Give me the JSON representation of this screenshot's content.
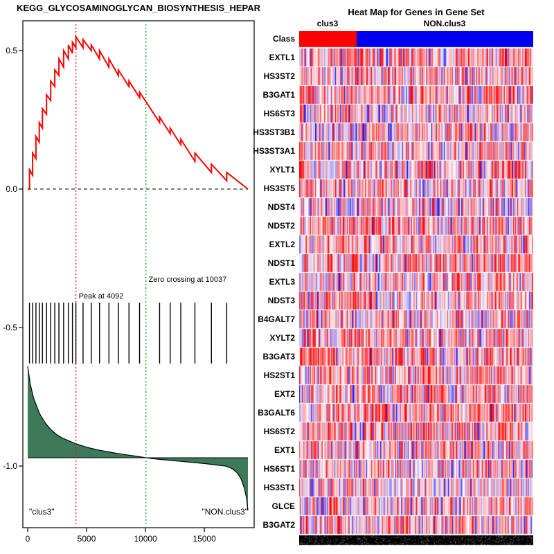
{
  "chart_data": [
    {
      "type": "line",
      "title": "KEGG_GLYCOSAMINOGLYCAN_BIOSYNTHESIS_HEPAR",
      "xlabel": "",
      "ylabel": "",
      "xlim": [
        0,
        18700
      ],
      "ylim": [
        -1.22,
        0.62
      ],
      "x_tick_values": [
        0,
        5000,
        10000,
        15000
      ],
      "x_ticks": [
        "0",
        "5000",
        "10000",
        "15000"
      ],
      "y_tick_values": [
        0.5,
        0.0,
        -0.5,
        -1.0
      ],
      "y_ticks": [
        "0.5",
        "0.0",
        "-0.5",
        "-1.0"
      ],
      "annotations": {
        "peak": {
          "label": "Peak at 4092",
          "x": 4092
        },
        "zero_crossing": {
          "label": "Zero crossing at 10037",
          "x": 10037
        },
        "left_group": "\"clus3\"",
        "right_group": "\"NON.clus3\""
      },
      "zero_es_line": {
        "y": 0.0,
        "style": "dashed",
        "color": "#333333"
      },
      "vlines": [
        {
          "x": 4092,
          "color": "#FF0000",
          "style": "dotted"
        },
        {
          "x": 10037,
          "color": "#00AA00",
          "style": "dotted"
        }
      ],
      "gene_hits": {
        "y_range": [
          -0.41,
          -0.63
        ],
        "color": "#000000",
        "x": [
          150,
          420,
          700,
          980,
          1250,
          1600,
          1950,
          2300,
          2650,
          3050,
          3450,
          3800,
          4092,
          4700,
          5400,
          6100,
          6900,
          7700,
          8600,
          9500,
          11200,
          12100,
          13000,
          14200,
          15600,
          16900
        ]
      },
      "series": [
        {
          "name": "running_enrichment_score",
          "color": "#FF0000",
          "points": [
            [
              0,
              0
            ],
            [
              150,
              0
            ],
            [
              150,
              0.07
            ],
            [
              420,
              0.05
            ],
            [
              420,
              0.13
            ],
            [
              700,
              0.11
            ],
            [
              700,
              0.19
            ],
            [
              980,
              0.17
            ],
            [
              980,
              0.24
            ],
            [
              1250,
              0.22
            ],
            [
              1250,
              0.29
            ],
            [
              1600,
              0.27
            ],
            [
              1600,
              0.34
            ],
            [
              1950,
              0.32
            ],
            [
              1950,
              0.39
            ],
            [
              2300,
              0.37
            ],
            [
              2300,
              0.43
            ],
            [
              2650,
              0.41
            ],
            [
              2650,
              0.47
            ],
            [
              3050,
              0.44
            ],
            [
              3050,
              0.5
            ],
            [
              3450,
              0.47
            ],
            [
              3450,
              0.52
            ],
            [
              3800,
              0.49
            ],
            [
              3800,
              0.53
            ],
            [
              4092,
              0.51
            ],
            [
              4092,
              0.55
            ],
            [
              4700,
              0.51
            ],
            [
              4700,
              0.54
            ],
            [
              5400,
              0.5
            ],
            [
              5400,
              0.52
            ],
            [
              6100,
              0.47
            ],
            [
              6100,
              0.5
            ],
            [
              6900,
              0.44
            ],
            [
              6900,
              0.47
            ],
            [
              7700,
              0.41
            ],
            [
              7700,
              0.43
            ],
            [
              8600,
              0.37
            ],
            [
              8600,
              0.39
            ],
            [
              9500,
              0.33
            ],
            [
              9500,
              0.35
            ],
            [
              11200,
              0.24
            ],
            [
              11200,
              0.26
            ],
            [
              12100,
              0.2
            ],
            [
              12100,
              0.22
            ],
            [
              13000,
              0.16
            ],
            [
              13000,
              0.18
            ],
            [
              14200,
              0.1
            ],
            [
              14200,
              0.13
            ],
            [
              15600,
              0.06
            ],
            [
              15600,
              0.09
            ],
            [
              16900,
              0.03
            ],
            [
              16900,
              0.06
            ],
            [
              18700,
              0
            ]
          ]
        },
        {
          "name": "ranked_list_metric",
          "color": "#000000",
          "fill": "#3C7A5A",
          "baseline": -0.97,
          "points": [
            [
              0,
              -0.64
            ],
            [
              200,
              -0.7
            ],
            [
              500,
              -0.755
            ],
            [
              1000,
              -0.81
            ],
            [
              1500,
              -0.845
            ],
            [
              2000,
              -0.87
            ],
            [
              2500,
              -0.888
            ],
            [
              3000,
              -0.9
            ],
            [
              4000,
              -0.918
            ],
            [
              5000,
              -0.932
            ],
            [
              6000,
              -0.942
            ],
            [
              7000,
              -0.95
            ],
            [
              8000,
              -0.957
            ],
            [
              9000,
              -0.963
            ],
            [
              10037,
              -0.97
            ],
            [
              11000,
              -0.975
            ],
            [
              12000,
              -0.979
            ],
            [
              13000,
              -0.983
            ],
            [
              14000,
              -0.987
            ],
            [
              15000,
              -0.991
            ],
            [
              16000,
              -0.996
            ],
            [
              16800,
              -1.0
            ],
            [
              17400,
              -1.01
            ],
            [
              17800,
              -1.025
            ],
            [
              18100,
              -1.045
            ],
            [
              18400,
              -1.08
            ],
            [
              18600,
              -1.12
            ],
            [
              18700,
              -1.16
            ]
          ]
        }
      ]
    },
    {
      "type": "heatmap",
      "title": "Heat Map for Genes in Gene Set",
      "class_row_label": "Class",
      "groups": [
        {
          "name": "clus3",
          "color": "#FF0000",
          "fraction": 0.245
        },
        {
          "name": "NON.clus3",
          "color": "#0000EE",
          "fraction": 0.755
        }
      ],
      "genes": [
        "EXTL1",
        "HS3ST2",
        "B3GAT1",
        "HS6ST3",
        "HS3ST3B1",
        "HS3ST3A1",
        "XYLT1",
        "HS3ST5",
        "NDST4",
        "NDST2",
        "EXTL2",
        "NDST1",
        "EXTL3",
        "NDST3",
        "B4GALT7",
        "XYLT2",
        "B3GAT3",
        "HS2ST1",
        "EXT2",
        "B3GALT6",
        "HS6ST2",
        "EXT1",
        "HS6ST1",
        "HS3ST1",
        "GLCE",
        "B3GAT2"
      ],
      "n_samples": 280,
      "seed": 20407,
      "palette": {
        "high": "#FF0000",
        "mid": "#FFFFFF",
        "low": "#0000FF"
      }
    }
  ]
}
